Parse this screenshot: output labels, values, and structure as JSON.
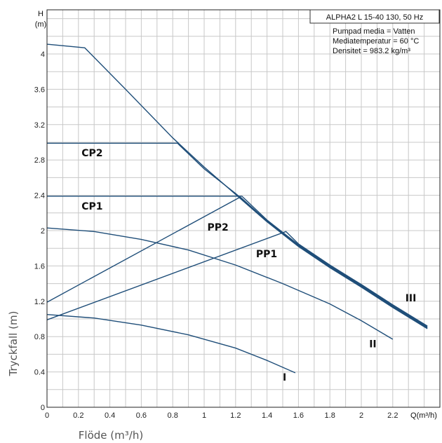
{
  "chart_data": {
    "type": "line",
    "title": "ALPHA2 L 15-40 130, 50 Hz",
    "info_lines": [
      "Pumpad media = Vatten",
      "Mediatemperatur  = 60 °C",
      "Densitet = 983.2 kg/m³"
    ],
    "ylabel": "Tryckfall (m)",
    "xlabel": "Flöde (m³/h)",
    "y_unit_top": "H",
    "y_unit_bottom": "(m)",
    "x_unit": "Q(m³/h)",
    "xlim": [
      0,
      2.5
    ],
    "ylim": [
      0,
      4.5
    ],
    "x_ticks": [
      "0",
      "0.2",
      "0.4",
      "0.6",
      "0.8",
      "1",
      "1.2",
      "1.4",
      "1.6",
      "1.8",
      "2",
      "2.2"
    ],
    "x_tick_values": [
      0,
      0.2,
      0.4,
      0.6,
      0.8,
      1.0,
      1.2,
      1.4,
      1.6,
      1.8,
      2.0,
      2.2
    ],
    "y_ticks": [
      "0",
      "0.4",
      "0.8",
      "1.2",
      "1.6",
      "2",
      "2.4",
      "2.8",
      "3.2",
      "3.6",
      "4"
    ],
    "y_tick_values": [
      0,
      0.4,
      0.8,
      1.2,
      1.6,
      2.0,
      2.4,
      2.8,
      3.2,
      3.6,
      4.0
    ],
    "grid": true,
    "series": [
      {
        "name": "III",
        "points": [
          [
            0,
            4.11
          ],
          [
            0.24,
            4.07
          ],
          [
            0.5,
            3.6
          ],
          [
            0.8,
            3.05
          ],
          [
            1.0,
            2.72
          ],
          [
            1.2,
            2.41
          ],
          [
            1.4,
            2.1
          ],
          [
            1.6,
            1.82
          ],
          [
            1.8,
            1.58
          ],
          [
            2.0,
            1.36
          ],
          [
            2.2,
            1.13
          ],
          [
            2.42,
            0.89
          ]
        ]
      },
      {
        "name": "II",
        "points": [
          [
            0,
            2.03
          ],
          [
            0.3,
            1.99
          ],
          [
            0.6,
            1.9
          ],
          [
            0.9,
            1.78
          ],
          [
            1.2,
            1.61
          ],
          [
            1.5,
            1.4
          ],
          [
            1.8,
            1.17
          ],
          [
            2.0,
            0.98
          ],
          [
            2.2,
            0.77
          ]
        ]
      },
      {
        "name": "I",
        "points": [
          [
            0,
            1.05
          ],
          [
            0.3,
            1.01
          ],
          [
            0.6,
            0.93
          ],
          [
            0.9,
            0.82
          ],
          [
            1.2,
            0.67
          ],
          [
            1.4,
            0.53
          ],
          [
            1.58,
            0.39
          ]
        ]
      },
      {
        "name": "CP2",
        "points": [
          [
            0,
            2.99
          ],
          [
            0.83,
            2.99
          ],
          [
            1.0,
            2.7
          ],
          [
            1.2,
            2.42
          ],
          [
            1.4,
            2.11
          ],
          [
            1.6,
            1.83
          ],
          [
            1.8,
            1.59
          ],
          [
            2.0,
            1.37
          ],
          [
            2.2,
            1.14
          ],
          [
            2.42,
            0.9
          ]
        ]
      },
      {
        "name": "CP1",
        "points": [
          [
            0,
            2.39
          ],
          [
            1.24,
            2.39
          ],
          [
            1.4,
            2.12
          ],
          [
            1.6,
            1.84
          ],
          [
            1.8,
            1.6
          ],
          [
            2.0,
            1.38
          ],
          [
            2.2,
            1.15
          ],
          [
            2.42,
            0.91
          ]
        ]
      },
      {
        "name": "PP2",
        "points": [
          [
            0,
            1.19
          ],
          [
            1.23,
            2.38
          ],
          [
            1.4,
            2.11
          ],
          [
            1.6,
            1.83
          ],
          [
            1.8,
            1.59
          ],
          [
            2.0,
            1.37
          ],
          [
            2.2,
            1.14
          ],
          [
            2.42,
            0.9
          ]
        ]
      },
      {
        "name": "PP1",
        "points": [
          [
            0,
            0.99
          ],
          [
            1.52,
            1.99
          ],
          [
            1.6,
            1.85
          ],
          [
            1.8,
            1.61
          ],
          [
            2.0,
            1.39
          ],
          [
            2.2,
            1.16
          ],
          [
            2.42,
            0.92
          ]
        ]
      }
    ],
    "label_positions": [
      {
        "name": "III",
        "x": 2.28,
        "y": 1.2
      },
      {
        "name": "II",
        "x": 2.05,
        "y": 0.68
      },
      {
        "name": "I",
        "x": 1.5,
        "y": 0.3
      },
      {
        "name": "CP2",
        "x": 0.22,
        "y": 2.84
      },
      {
        "name": "CP1",
        "x": 0.22,
        "y": 2.24
      },
      {
        "name": "PP2",
        "x": 1.02,
        "y": 2.0
      },
      {
        "name": "PP1",
        "x": 1.33,
        "y": 1.7
      }
    ],
    "line_color": "#1f4e79"
  }
}
